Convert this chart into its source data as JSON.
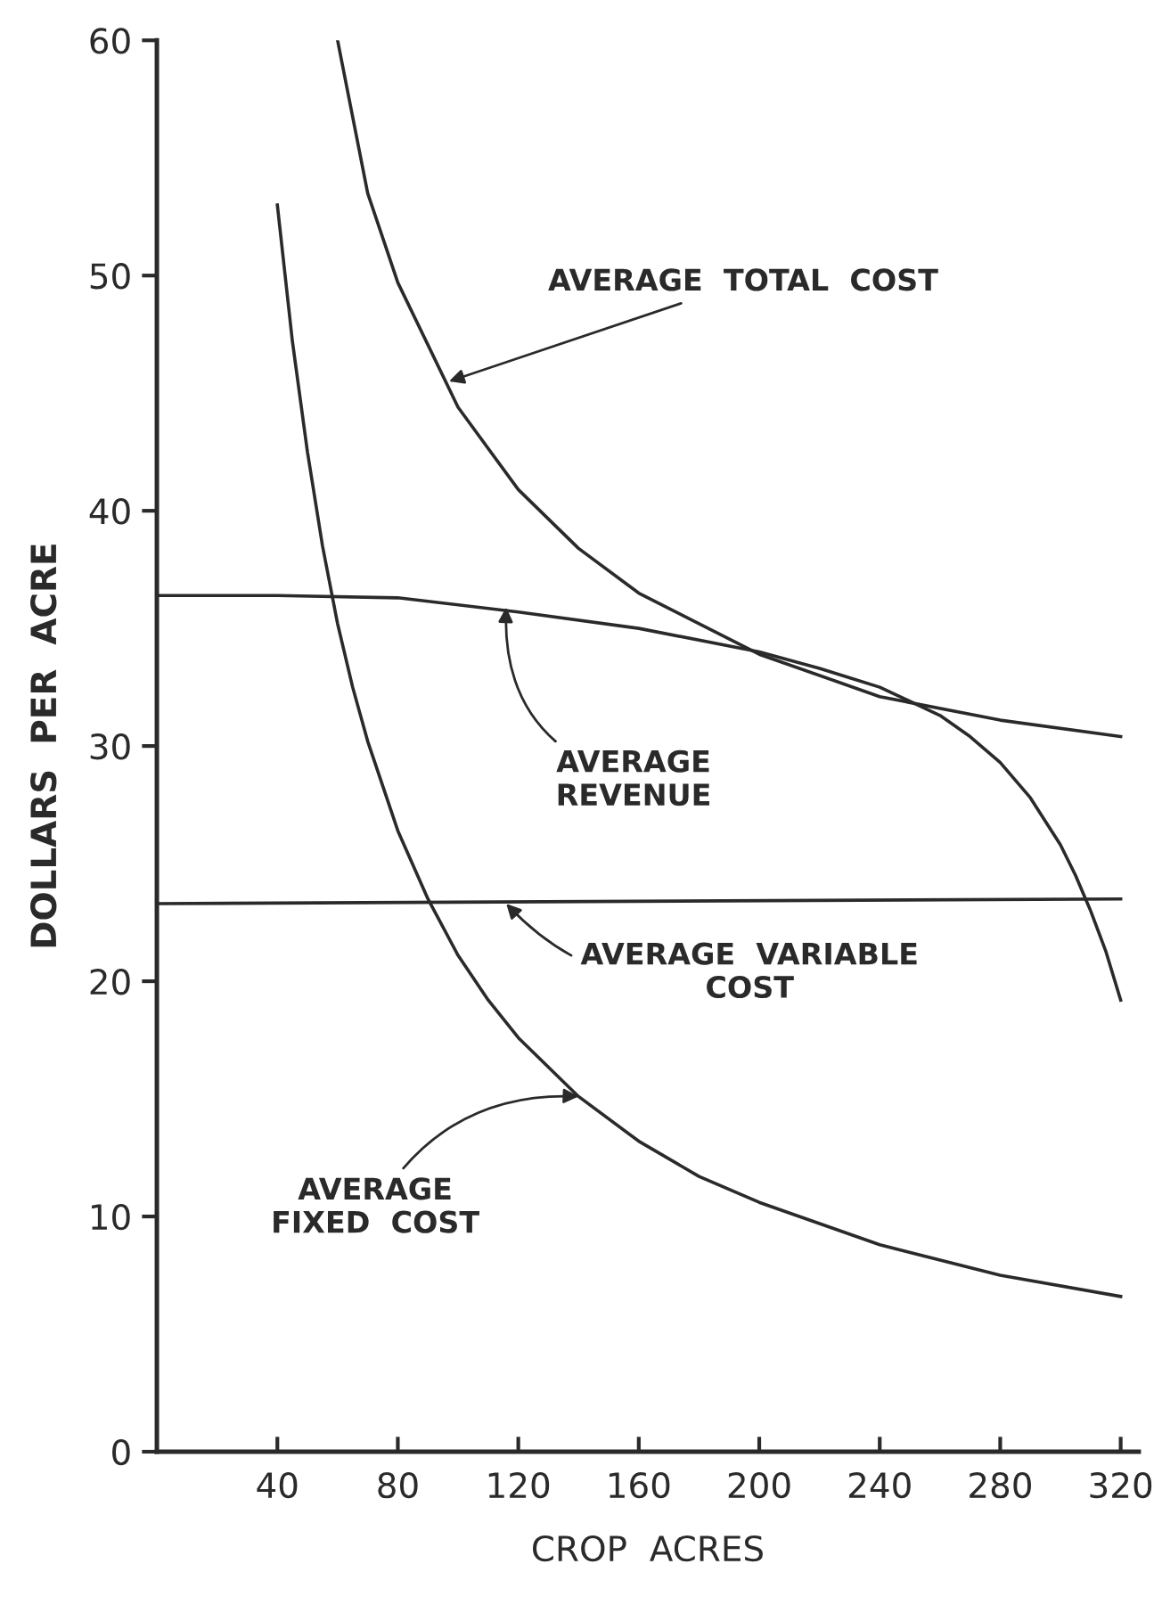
{
  "chart_data": {
    "type": "line",
    "xlabel": "CROP  ACRES",
    "ylabel": "DOLLARS  PER  ACRE",
    "xlim": [
      0,
      326
    ],
    "ylim": [
      0,
      60
    ],
    "xticks": [
      40,
      80,
      120,
      160,
      200,
      240,
      280,
      320
    ],
    "yticks": [
      0,
      10,
      20,
      30,
      40,
      50,
      60
    ],
    "grid": false,
    "marker": "none",
    "line_style": "solid",
    "series": [
      {
        "color": "#2a2a2a",
        "x": [
          60,
          70,
          80,
          100,
          120,
          140,
          160,
          200,
          240,
          280,
          320
        ],
        "values": [
          60,
          53.5,
          49.7,
          44.4,
          40.9,
          38.4,
          36.5,
          33.9,
          32.1,
          31.1,
          30.4
        ]
      },
      {
        "color": "#2a2a2a",
        "x": [
          0,
          40,
          80,
          120,
          160,
          200,
          220,
          240,
          260,
          270,
          280,
          290,
          300,
          305,
          310,
          315,
          320
        ],
        "values": [
          36.4,
          36.4,
          36.3,
          35.7,
          35.0,
          34.0,
          33.3,
          32.5,
          31.3,
          30.4,
          29.3,
          27.8,
          25.8,
          24.5,
          23.0,
          21.3,
          19.2
        ]
      },
      {
        "color": "#2a2a2a",
        "x": [
          0,
          320
        ],
        "values": [
          23.3,
          23.5
        ]
      },
      {
        "color": "#2a2a2a",
        "x": [
          40,
          45,
          50,
          55,
          60,
          65,
          70,
          80,
          90,
          100,
          110,
          120,
          140,
          160,
          180,
          200,
          240,
          280,
          320
        ],
        "values": [
          53.0,
          47.2,
          42.5,
          38.5,
          35.2,
          32.5,
          30.2,
          26.4,
          23.5,
          21.1,
          19.2,
          17.6,
          15.1,
          13.2,
          11.7,
          10.6,
          8.8,
          7.5,
          6.6
        ]
      }
    ],
    "annotations": [
      {
        "text": "AVERAGE  TOTAL  COST",
        "x": 97,
        "y": 45.5
      },
      {
        "text": "AVERAGE\nREVENUE",
        "x": 116,
        "y": 35.9
      },
      {
        "text": "AVERAGE  VARIABLE\nCOST",
        "x": 116,
        "y": 23.3
      },
      {
        "text": "AVERAGE\nFIXED  COST",
        "x": 140,
        "y": 15.1
      }
    ]
  }
}
